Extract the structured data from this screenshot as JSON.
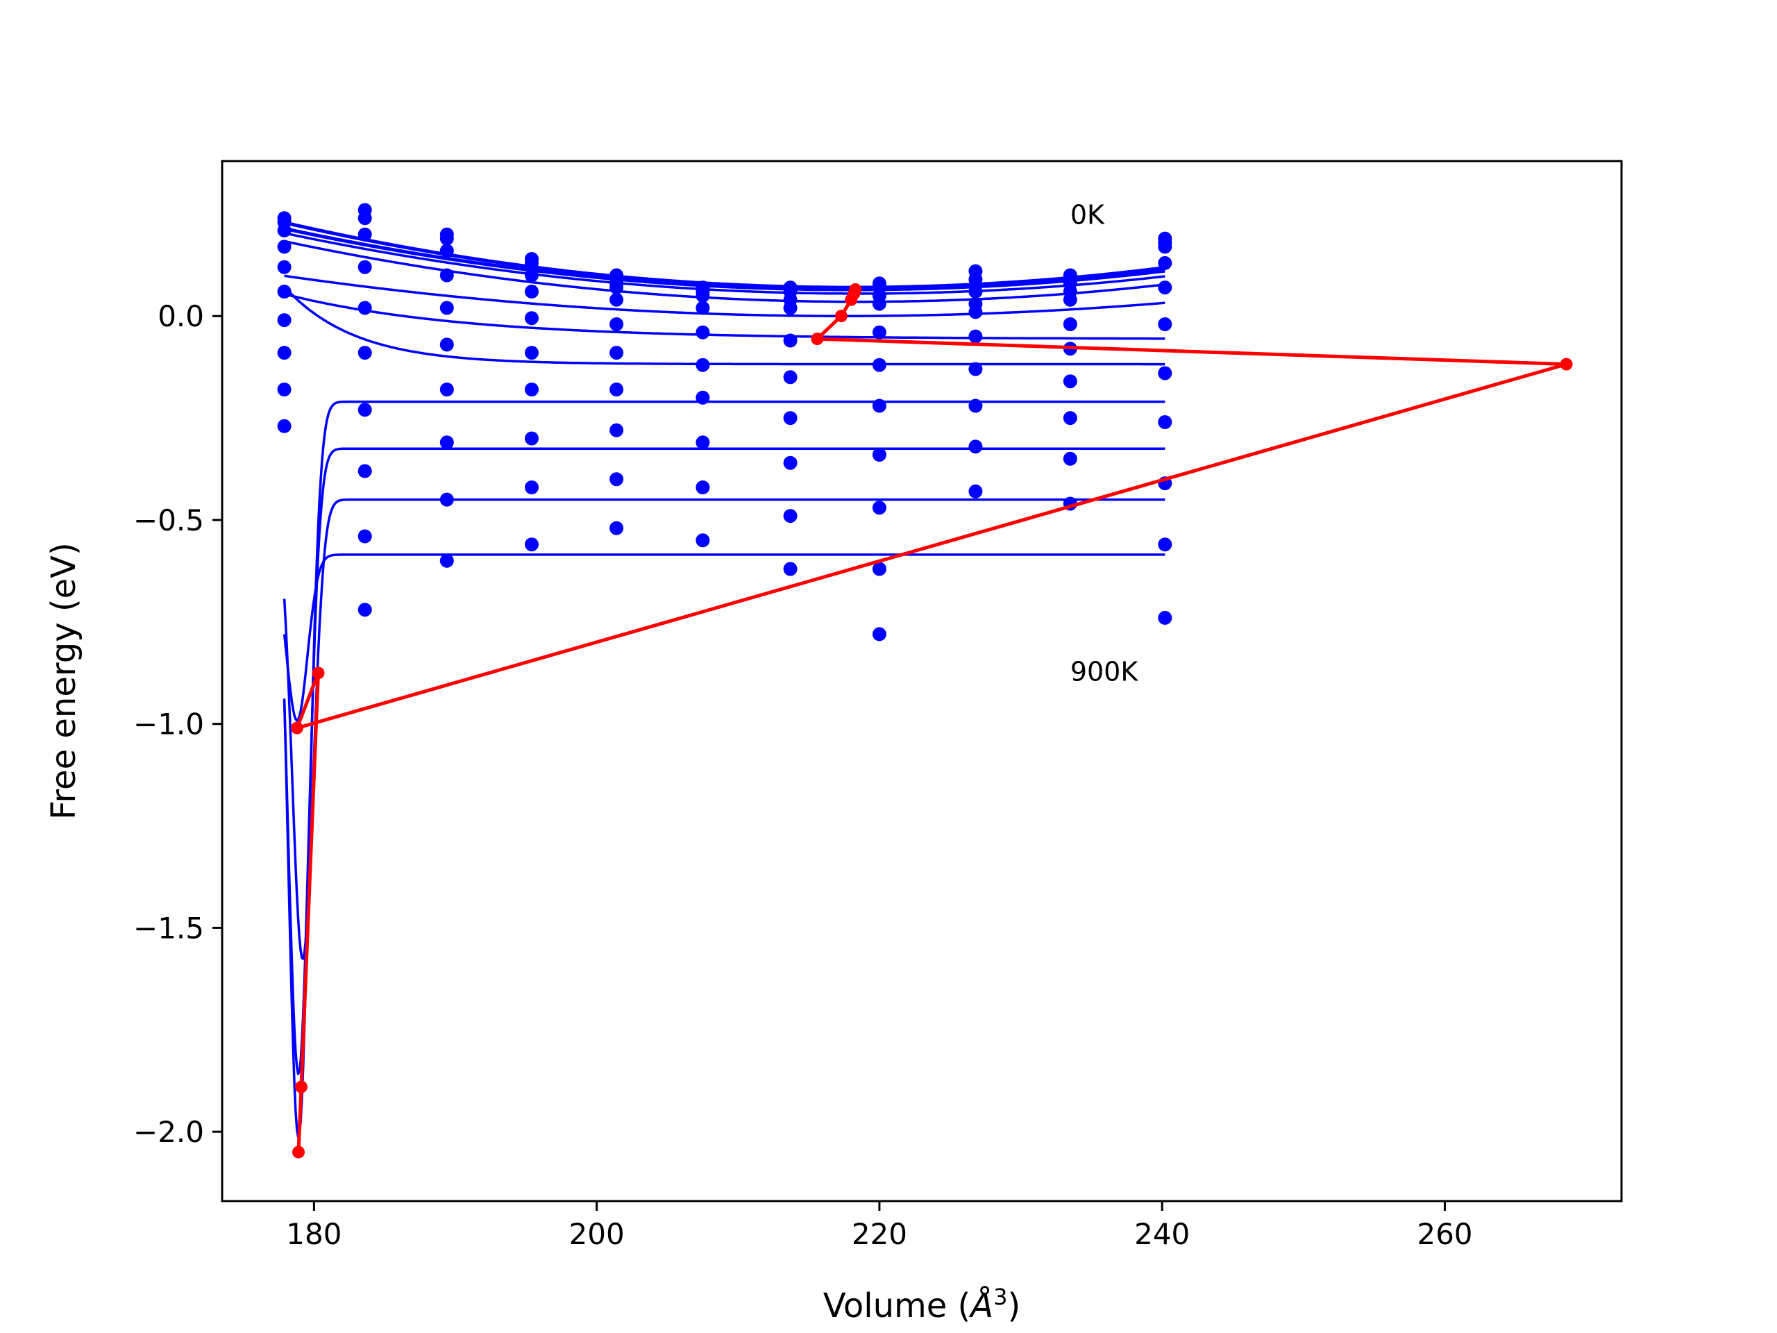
{
  "chart_data": {
    "type": "scatter",
    "title": "",
    "xlabel_prefix": "Volume (",
    "xlabel_symbol": "Å",
    "xlabel_exp": "3",
    "xlabel_suffix": ")",
    "ylabel": "Free energy (eV)",
    "xlim": [
      173.5,
      272.5
    ],
    "ylim": [
      -2.17,
      0.38
    ],
    "xticks": [
      180,
      200,
      220,
      240,
      260
    ],
    "yticks": [
      0.0,
      -0.5,
      -1.0,
      -1.5,
      -2.0
    ],
    "xtick_labels": [
      "180",
      "200",
      "220",
      "240",
      "260"
    ],
    "ytick_labels": [
      "0.0",
      "−0.5",
      "−1.0",
      "−1.5",
      "−2.0"
    ],
    "grid": false,
    "annotations": [
      {
        "text": "0K",
        "x": 233.5,
        "y": 0.25
      },
      {
        "text": "900K",
        "x": 233.5,
        "y": -0.87
      }
    ],
    "points_color": "#0000ff",
    "fit_color": "#0000ff",
    "min_path_color": "#ff0000",
    "volumes": [
      177.9,
      183.6,
      189.4,
      195.4,
      201.4,
      207.5,
      213.7,
      220.0,
      226.8,
      233.5,
      240.2
    ],
    "data_points": [
      [
        [
          177.9,
          0.24
        ],
        [
          177.9,
          0.23
        ],
        [
          177.9,
          0.21
        ],
        [
          177.9,
          0.17
        ],
        [
          177.9,
          0.12
        ],
        [
          177.9,
          0.06
        ],
        [
          177.9,
          -0.01
        ],
        [
          177.9,
          -0.09
        ],
        [
          177.9,
          -0.18
        ],
        [
          177.9,
          -0.27
        ]
      ],
      [
        [
          183.6,
          0.26
        ],
        [
          183.6,
          0.24
        ],
        [
          183.6,
          0.2
        ],
        [
          183.6,
          0.12
        ],
        [
          183.6,
          0.02
        ],
        [
          183.6,
          -0.09
        ],
        [
          183.6,
          -0.23
        ],
        [
          183.6,
          -0.38
        ],
        [
          183.6,
          -0.54
        ],
        [
          183.6,
          -0.72
        ]
      ],
      [
        [
          189.4,
          0.2
        ],
        [
          189.4,
          0.19
        ],
        [
          189.4,
          0.16
        ],
        [
          189.4,
          0.1
        ],
        [
          189.4,
          0.02
        ],
        [
          189.4,
          -0.07
        ],
        [
          189.4,
          -0.18
        ],
        [
          189.4,
          -0.31
        ],
        [
          189.4,
          -0.45
        ],
        [
          189.4,
          -0.6
        ]
      ],
      [
        [
          195.4,
          0.14
        ],
        [
          195.4,
          0.13
        ],
        [
          195.4,
          0.1
        ],
        [
          195.4,
          0.06
        ],
        [
          195.4,
          -0.005
        ],
        [
          195.4,
          -0.09
        ],
        [
          195.4,
          -0.18
        ],
        [
          195.4,
          -0.3
        ],
        [
          195.4,
          -0.42
        ],
        [
          195.4,
          -0.56
        ]
      ],
      [
        [
          201.4,
          0.1
        ],
        [
          201.4,
          0.08
        ],
        [
          201.4,
          0.07
        ],
        [
          201.4,
          0.04
        ],
        [
          201.4,
          -0.02
        ],
        [
          201.4,
          -0.09
        ],
        [
          201.4,
          -0.18
        ],
        [
          201.4,
          -0.28
        ],
        [
          201.4,
          -0.4
        ],
        [
          201.4,
          -0.52
        ]
      ],
      [
        [
          207.5,
          0.07
        ],
        [
          207.5,
          0.06
        ],
        [
          207.5,
          0.05
        ],
        [
          207.5,
          0.02
        ],
        [
          207.5,
          -0.04
        ],
        [
          207.5,
          -0.12
        ],
        [
          207.5,
          -0.2
        ],
        [
          207.5,
          -0.31
        ],
        [
          207.5,
          -0.42
        ],
        [
          207.5,
          -0.55
        ]
      ],
      [
        [
          213.7,
          0.07
        ],
        [
          213.7,
          0.06
        ],
        [
          213.7,
          0.04
        ],
        [
          213.7,
          0.02
        ],
        [
          213.7,
          -0.06
        ],
        [
          213.7,
          -0.15
        ],
        [
          213.7,
          -0.25
        ],
        [
          213.7,
          -0.36
        ],
        [
          213.7,
          -0.49
        ],
        [
          213.7,
          -0.62
        ]
      ],
      [
        [
          220.0,
          0.08
        ],
        [
          220.0,
          0.07
        ],
        [
          220.0,
          0.05
        ],
        [
          220.0,
          0.03
        ],
        [
          220.0,
          -0.04
        ],
        [
          220.0,
          -0.12
        ],
        [
          220.0,
          -0.22
        ],
        [
          220.0,
          -0.34
        ],
        [
          220.0,
          -0.47
        ],
        [
          220.0,
          -0.62
        ],
        [
          220.0,
          -0.78
        ]
      ],
      [
        [
          226.8,
          0.11
        ],
        [
          226.8,
          0.09
        ],
        [
          226.8,
          0.06
        ],
        [
          226.8,
          0.03
        ],
        [
          226.8,
          0.01
        ],
        [
          226.8,
          -0.05
        ],
        [
          226.8,
          -0.13
        ],
        [
          226.8,
          -0.22
        ],
        [
          226.8,
          -0.32
        ],
        [
          226.8,
          -0.43
        ]
      ],
      [
        [
          233.5,
          0.1
        ],
        [
          233.5,
          0.08
        ],
        [
          233.5,
          0.06
        ],
        [
          233.5,
          0.04
        ],
        [
          233.5,
          -0.02
        ],
        [
          233.5,
          -0.08
        ],
        [
          233.5,
          -0.16
        ],
        [
          233.5,
          -0.25
        ],
        [
          233.5,
          -0.35
        ],
        [
          233.5,
          -0.46
        ]
      ],
      [
        [
          240.2,
          0.19
        ],
        [
          240.2,
          0.18
        ],
        [
          240.2,
          0.17
        ],
        [
          240.2,
          0.13
        ],
        [
          240.2,
          0.07
        ],
        [
          240.2,
          -0.02
        ],
        [
          240.2,
          -0.14
        ],
        [
          240.2,
          -0.26
        ],
        [
          240.2,
          -0.41
        ],
        [
          240.2,
          -0.56
        ],
        [
          240.2,
          -0.74
        ]
      ]
    ],
    "fit_curves": [
      {
        "type": "parabola",
        "v0": 218.0,
        "fmin": 0.07,
        "a": 9.9e-05,
        "width": 5
      },
      {
        "type": "parabola",
        "v0": 218.0,
        "fmin": 0.065,
        "a": 9.3e-05,
        "width": 5
      },
      {
        "type": "parabola",
        "v0": 218.5,
        "fmin": 0.055,
        "a": 9e-05,
        "width": 3.5
      },
      {
        "type": "parabola",
        "v0": 218.5,
        "fmin": 0.035,
        "a": 9e-05,
        "width": 3.5
      },
      {
        "type": "parabola",
        "v0": 217.5,
        "fmin": 0.0,
        "a": 6.29e-05,
        "width": 3.5
      },
      {
        "type": "sat",
        "plateau": -0.056,
        "c0": 0.11,
        "k": 0.08,
        "vmin": 0,
        "dmin": 0
      },
      {
        "type": "sat",
        "plateau": -0.118,
        "c0": 0.19,
        "k": 0.2,
        "vmin": 0,
        "dmin": 0
      },
      {
        "type": "sat",
        "plateau": -0.21,
        "c0": 0.0,
        "k": 0.35,
        "vmin": 178.9,
        "dmin": -2.05
      },
      {
        "type": "sat",
        "plateau": -0.325,
        "c0": 0.0,
        "k": 0.33,
        "vmin": 178.9,
        "dmin": -1.89
      },
      {
        "type": "sat",
        "plateau": -0.45,
        "c0": 0.0,
        "k": 0.3,
        "vmin": 179.2,
        "dmin": -1.6
      },
      {
        "type": "sat",
        "plateau": -0.585,
        "c0": 0.0,
        "k": 0.29,
        "vmin": 178.8,
        "dmin": -1.0
      }
    ],
    "min_path": [
      [
        218.3,
        0.065
      ],
      [
        218.2,
        0.055
      ],
      [
        218.0,
        0.04
      ],
      [
        217.3,
        0.0
      ],
      [
        215.6,
        -0.056
      ],
      [
        268.6,
        -0.118
      ],
      [
        178.8,
        -1.01
      ],
      [
        180.3,
        -0.875
      ],
      [
        179.1,
        -1.89
      ],
      [
        178.9,
        -2.05
      ]
    ]
  }
}
